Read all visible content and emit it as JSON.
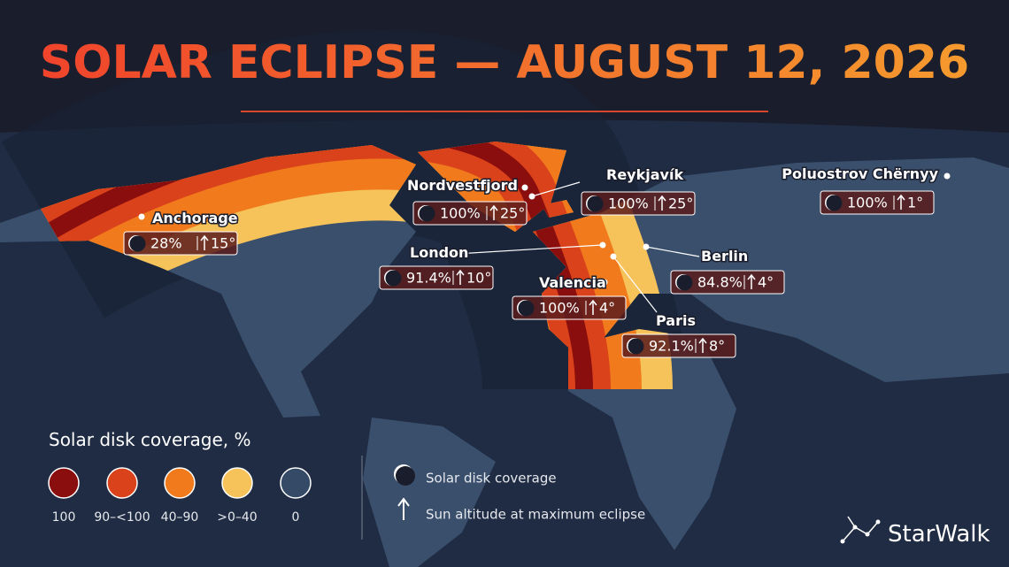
{
  "header": {
    "title": "SOLAR ECLIPSE — AUGUST 12, 2026"
  },
  "locations": [
    {
      "name": "Nordvestfjord",
      "coverage": "100%",
      "altitude": "25°"
    },
    {
      "name": "Reykjavík",
      "coverage": "100%",
      "altitude": "25°"
    },
    {
      "name": "Poluostrov Chërnyy",
      "coverage": "100%",
      "altitude": "1°"
    },
    {
      "name": "Anchorage",
      "coverage": "28%",
      "altitude": "15°"
    },
    {
      "name": "London",
      "coverage": "91.4%",
      "altitude": "10°"
    },
    {
      "name": "Berlin",
      "coverage": "84.8%",
      "altitude": "4°"
    },
    {
      "name": "Valencia",
      "coverage": "100%",
      "altitude": "4°"
    },
    {
      "name": "Paris",
      "coverage": "92.1%",
      "altitude": "8°"
    }
  ],
  "legend": {
    "title": "Solar disk coverage, %",
    "items": [
      {
        "label": "100",
        "color": "#8b0e0e"
      },
      {
        "label": "90–<100",
        "color": "#d9421a"
      },
      {
        "label": "40–90",
        "color": "#f07a1c"
      },
      {
        "label": ">0–40",
        "color": "#f6c25a"
      },
      {
        "label": "0",
        "color": "#344a66"
      }
    ]
  },
  "notes": [
    "Solar disk coverage",
    "Sun altitude at maximum eclipse"
  ],
  "brand": "StarWalk"
}
